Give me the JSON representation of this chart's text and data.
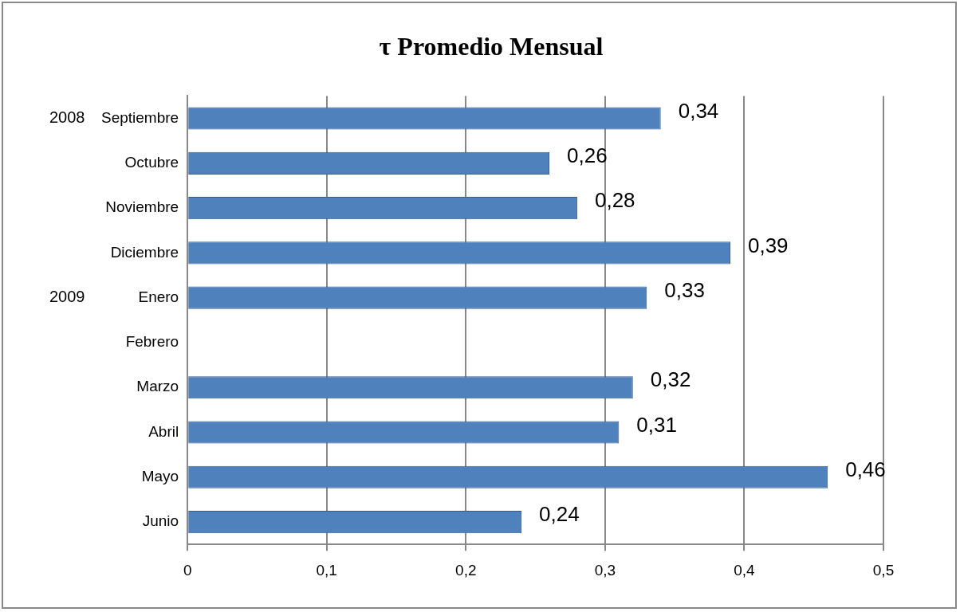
{
  "chart_data": {
    "type": "bar",
    "orientation": "horizontal",
    "title": "τ Promedio Mensual",
    "categories": [
      "Septiembre",
      "Octubre",
      "Noviembre",
      "Diciembre",
      "Enero",
      "Febrero",
      "Marzo",
      "Abril",
      "Mayo",
      "Junio"
    ],
    "values": [
      0.34,
      0.26,
      0.28,
      0.39,
      0.33,
      0,
      0.32,
      0.31,
      0.46,
      0.24
    ],
    "value_labels": [
      "0,34",
      "0,26",
      "0,28",
      "0,39",
      "0,33",
      null,
      "0,32",
      "0,31",
      "0,46",
      "0,24"
    ],
    "color": "#4f81bd",
    "xlim": [
      0,
      0.5
    ],
    "xticks": [
      {
        "value": 0,
        "label": "0"
      },
      {
        "value": 0.1,
        "label": "0,1"
      },
      {
        "value": 0.2,
        "label": "0,2"
      },
      {
        "value": 0.3,
        "label": "0,3"
      },
      {
        "value": 0.4,
        "label": "0,4"
      },
      {
        "value": 0.5,
        "label": "0,5"
      }
    ],
    "grid": "x",
    "legend": false,
    "annotations": [
      "2008",
      "2009"
    ]
  }
}
